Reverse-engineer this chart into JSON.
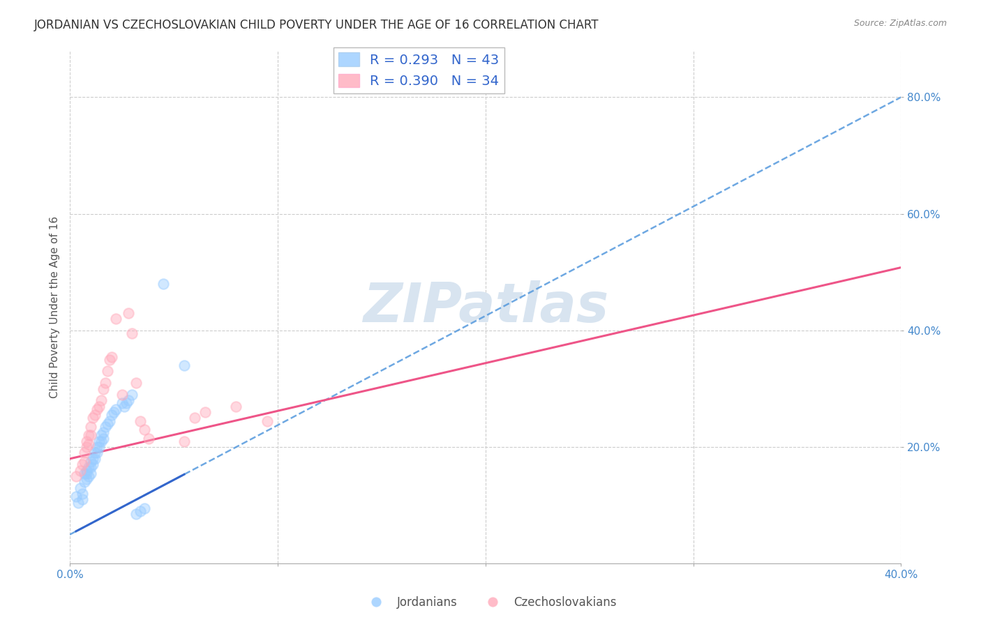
{
  "title": "JORDANIAN VS CZECHOSLOVAKIAN CHILD POVERTY UNDER THE AGE OF 16 CORRELATION CHART",
  "source": "Source: ZipAtlas.com",
  "ylabel": "Child Poverty Under the Age of 16",
  "xlim": [
    0.0,
    0.4
  ],
  "ylim": [
    0.0,
    0.88
  ],
  "x_ticks": [
    0.0,
    0.1,
    0.2,
    0.3,
    0.4
  ],
  "x_tick_labels": [
    "0.0%",
    "",
    "",
    "",
    "40.0%"
  ],
  "y_ticks": [
    0.2,
    0.4,
    0.6,
    0.8
  ],
  "y_tick_labels": [
    "20.0%",
    "40.0%",
    "60.0%",
    "80.0%"
  ],
  "grid_color": "#cccccc",
  "background_color": "#ffffff",
  "jordanians": {
    "x": [
      0.003,
      0.004,
      0.005,
      0.006,
      0.006,
      0.007,
      0.007,
      0.008,
      0.008,
      0.008,
      0.009,
      0.009,
      0.01,
      0.01,
      0.01,
      0.011,
      0.011,
      0.012,
      0.012,
      0.013,
      0.013,
      0.014,
      0.014,
      0.015,
      0.015,
      0.016,
      0.016,
      0.017,
      0.018,
      0.019,
      0.02,
      0.021,
      0.022,
      0.025,
      0.026,
      0.027,
      0.028,
      0.03,
      0.032,
      0.034,
      0.036,
      0.045,
      0.055
    ],
    "y": [
      0.115,
      0.105,
      0.13,
      0.12,
      0.11,
      0.155,
      0.14,
      0.16,
      0.155,
      0.145,
      0.165,
      0.15,
      0.175,
      0.165,
      0.155,
      0.18,
      0.17,
      0.19,
      0.18,
      0.2,
      0.19,
      0.21,
      0.2,
      0.22,
      0.21,
      0.225,
      0.215,
      0.235,
      0.24,
      0.245,
      0.255,
      0.26,
      0.265,
      0.275,
      0.27,
      0.275,
      0.28,
      0.29,
      0.085,
      0.09,
      0.095,
      0.48,
      0.34
    ],
    "color": "#99ccff",
    "R": 0.293,
    "N": 43,
    "trend_color": "#5599dd",
    "trend_solid_color": "#3366cc"
  },
  "czechoslovakians": {
    "x": [
      0.003,
      0.005,
      0.006,
      0.007,
      0.007,
      0.008,
      0.008,
      0.009,
      0.009,
      0.01,
      0.01,
      0.011,
      0.012,
      0.013,
      0.014,
      0.015,
      0.016,
      0.017,
      0.018,
      0.019,
      0.02,
      0.022,
      0.025,
      0.028,
      0.03,
      0.032,
      0.034,
      0.036,
      0.038,
      0.055,
      0.06,
      0.065,
      0.08,
      0.095
    ],
    "y": [
      0.15,
      0.16,
      0.17,
      0.19,
      0.175,
      0.21,
      0.2,
      0.22,
      0.205,
      0.235,
      0.22,
      0.25,
      0.255,
      0.265,
      0.27,
      0.28,
      0.3,
      0.31,
      0.33,
      0.35,
      0.355,
      0.42,
      0.29,
      0.43,
      0.395,
      0.31,
      0.245,
      0.23,
      0.215,
      0.21,
      0.25,
      0.26,
      0.27,
      0.245
    ],
    "color": "#ffaabb",
    "R": 0.39,
    "N": 34,
    "trend_color": "#ee5588"
  },
  "watermark": "ZIPatlas",
  "watermark_color": "#d8e4f0",
  "legend_fontsize": 14,
  "title_fontsize": 12,
  "axis_label_fontsize": 11,
  "tick_fontsize": 11,
  "marker_size": 110,
  "marker_alpha": 0.45,
  "marker_linewidth": 1.5
}
